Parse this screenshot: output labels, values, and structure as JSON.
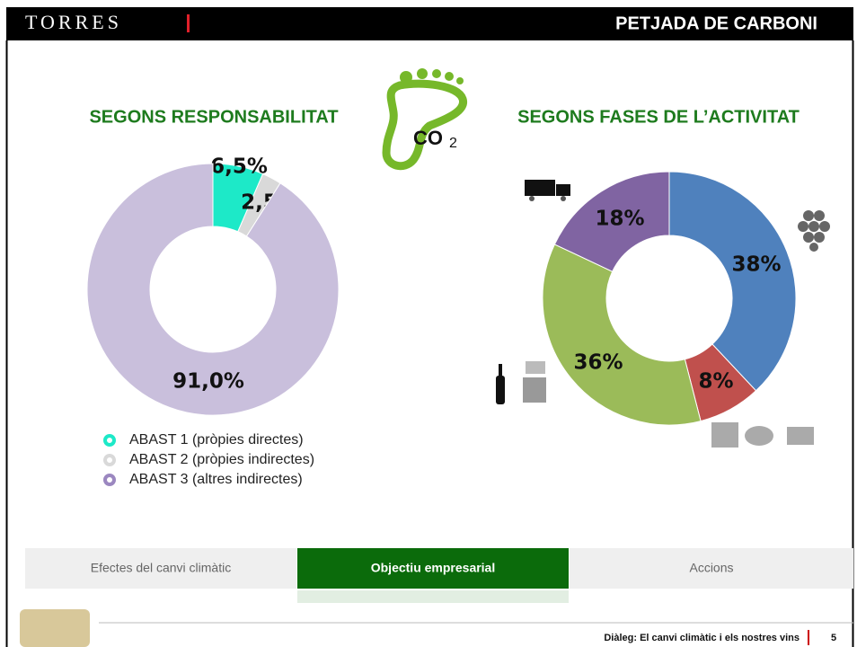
{
  "header": {
    "brand": "TORRES",
    "title": "PETJADA DE CARBONI"
  },
  "icon": {
    "co": "CO",
    "sub": "2"
  },
  "chart_data": [
    {
      "type": "donut",
      "title": "SEGONS RESPONSABILITAT",
      "series": [
        {
          "name": "ABAST 1 (pròpies directes)",
          "color": "#1de9c8",
          "values": [
            6.5
          ],
          "value_labels": [
            "6,5%"
          ]
        },
        {
          "name": "ABAST 2 (pròpies indirectes)",
          "color": "#d9d9d9",
          "values": [
            2.5
          ],
          "value_labels": [
            "2,5%"
          ]
        },
        {
          "name": "ABAST 3 (altres indirectes)",
          "color": "#c9bfdc",
          "values": [
            91.0
          ],
          "value_labels": [
            "91,0%"
          ]
        }
      ],
      "legend": "bottom-left"
    },
    {
      "type": "donut",
      "title": "SEGONS FASES DE L’ACTIVITAT",
      "values": [
        38,
        8,
        36,
        18
      ],
      "value_labels": [
        "38%",
        "8%",
        "36%",
        "18%"
      ],
      "colors": [
        "#4f81bd",
        "#c0504d",
        "#9bbb59",
        "#8064a2"
      ]
    }
  ],
  "tabs": [
    "Efectes del canvi climàtic",
    "Objectiu empresarial",
    "Accions"
  ],
  "footer": {
    "text": "Diàleg: El canvi climàtic i els nostres vins",
    "page": "5"
  }
}
